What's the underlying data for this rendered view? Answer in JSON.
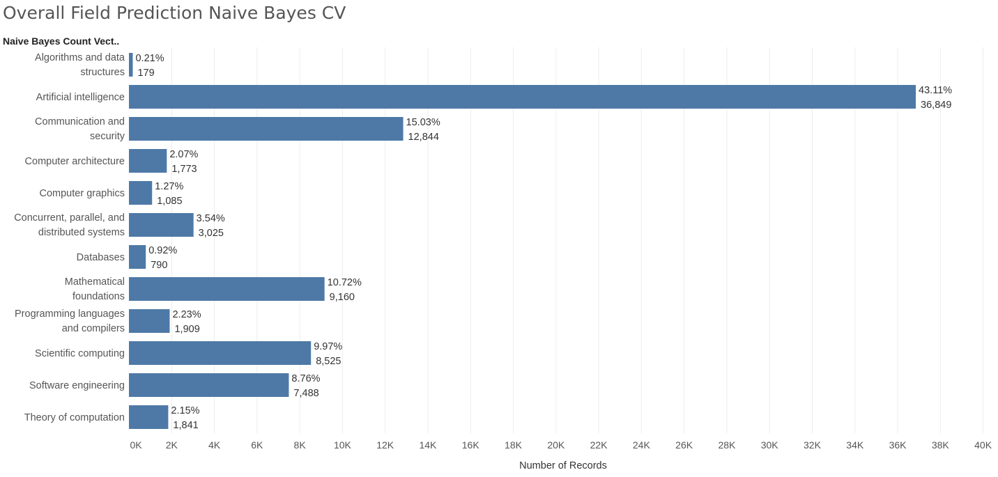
{
  "page": {
    "title": "Overall Field Prediction Naive Bayes CV",
    "row_header": "Naive Bayes Count Vect.."
  },
  "colors": {
    "bar": "#4e79a7",
    "gridline": "#ececec",
    "title": "#555555",
    "text": "#555555",
    "data_label": "#333333"
  },
  "chart_data": {
    "type": "bar",
    "orientation": "horizontal",
    "categories": [
      [
        "Algorithms and data",
        "structures"
      ],
      [
        "Artificial intelligence"
      ],
      [
        "Communication and",
        "security"
      ],
      [
        "Computer architecture"
      ],
      [
        "Computer graphics"
      ],
      [
        "Concurrent, parallel, and",
        "distributed systems"
      ],
      [
        "Databases"
      ],
      [
        "Mathematical",
        "foundations"
      ],
      [
        "Programming languages",
        "and compilers"
      ],
      [
        "Scientific computing"
      ],
      [
        "Software engineering"
      ],
      [
        "Theory of computation"
      ]
    ],
    "values": [
      179,
      36849,
      12844,
      1773,
      1085,
      3025,
      790,
      9160,
      1909,
      8525,
      7488,
      1841
    ],
    "percent_labels": [
      "0.21%",
      "43.11%",
      "15.03%",
      "2.07%",
      "1.27%",
      "3.54%",
      "0.92%",
      "10.72%",
      "2.23%",
      "9.97%",
      "8.76%",
      "2.15%"
    ],
    "value_labels": [
      "179",
      "36,849",
      "12,844",
      "1,773",
      "1,085",
      "3,025",
      "790",
      "9,160",
      "1,909",
      "8,525",
      "7,488",
      "1,841"
    ],
    "xlabel": "Number of Records",
    "xlim": [
      0,
      40000
    ],
    "xticks": [
      0,
      2000,
      4000,
      6000,
      8000,
      10000,
      12000,
      14000,
      16000,
      18000,
      20000,
      22000,
      24000,
      26000,
      28000,
      30000,
      32000,
      34000,
      36000,
      38000,
      40000
    ],
    "xtick_labels": [
      "0K",
      "2K",
      "4K",
      "6K",
      "8K",
      "10K",
      "12K",
      "14K",
      "16K",
      "18K",
      "20K",
      "22K",
      "24K",
      "26K",
      "28K",
      "30K",
      "32K",
      "34K",
      "36K",
      "38K",
      "40K"
    ],
    "grid": true
  }
}
